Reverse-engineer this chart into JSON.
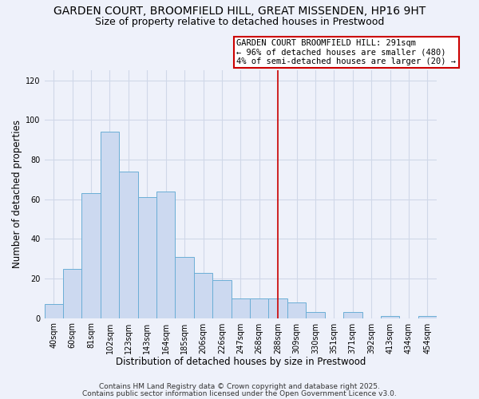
{
  "title": "GARDEN COURT, BROOMFIELD HILL, GREAT MISSENDEN, HP16 9HT",
  "subtitle": "Size of property relative to detached houses in Prestwood",
  "xlabel": "Distribution of detached houses by size in Prestwood",
  "ylabel": "Number of detached properties",
  "bar_labels": [
    "40sqm",
    "60sqm",
    "81sqm",
    "102sqm",
    "123sqm",
    "143sqm",
    "164sqm",
    "185sqm",
    "206sqm",
    "226sqm",
    "247sqm",
    "268sqm",
    "288sqm",
    "309sqm",
    "330sqm",
    "351sqm",
    "371sqm",
    "392sqm",
    "413sqm",
    "434sqm",
    "454sqm"
  ],
  "bar_values": [
    7,
    25,
    63,
    94,
    74,
    61,
    64,
    31,
    23,
    19,
    10,
    10,
    10,
    8,
    3,
    0,
    3,
    0,
    1,
    0,
    1
  ],
  "bar_color": "#ccd9f0",
  "bar_edge_color": "#6baed6",
  "vline_x_index": 12.0,
  "vline_color": "#cc0000",
  "annotation_text": "GARDEN COURT BROOMFIELD HILL: 291sqm\n← 96% of detached houses are smaller (480)\n4% of semi-detached houses are larger (20) →",
  "ylim": [
    0,
    125
  ],
  "yticks": [
    0,
    20,
    40,
    60,
    80,
    100,
    120
  ],
  "footer1": "Contains HM Land Registry data © Crown copyright and database right 2025.",
  "footer2": "Contains public sector information licensed under the Open Government Licence v3.0.",
  "bg_color": "#eef1fa",
  "grid_color": "#d0d8e8",
  "title_fontsize": 10,
  "subtitle_fontsize": 9,
  "xlabel_fontsize": 8.5,
  "ylabel_fontsize": 8.5,
  "tick_fontsize": 7,
  "annotation_fontsize": 7.5,
  "footer_fontsize": 6.5
}
